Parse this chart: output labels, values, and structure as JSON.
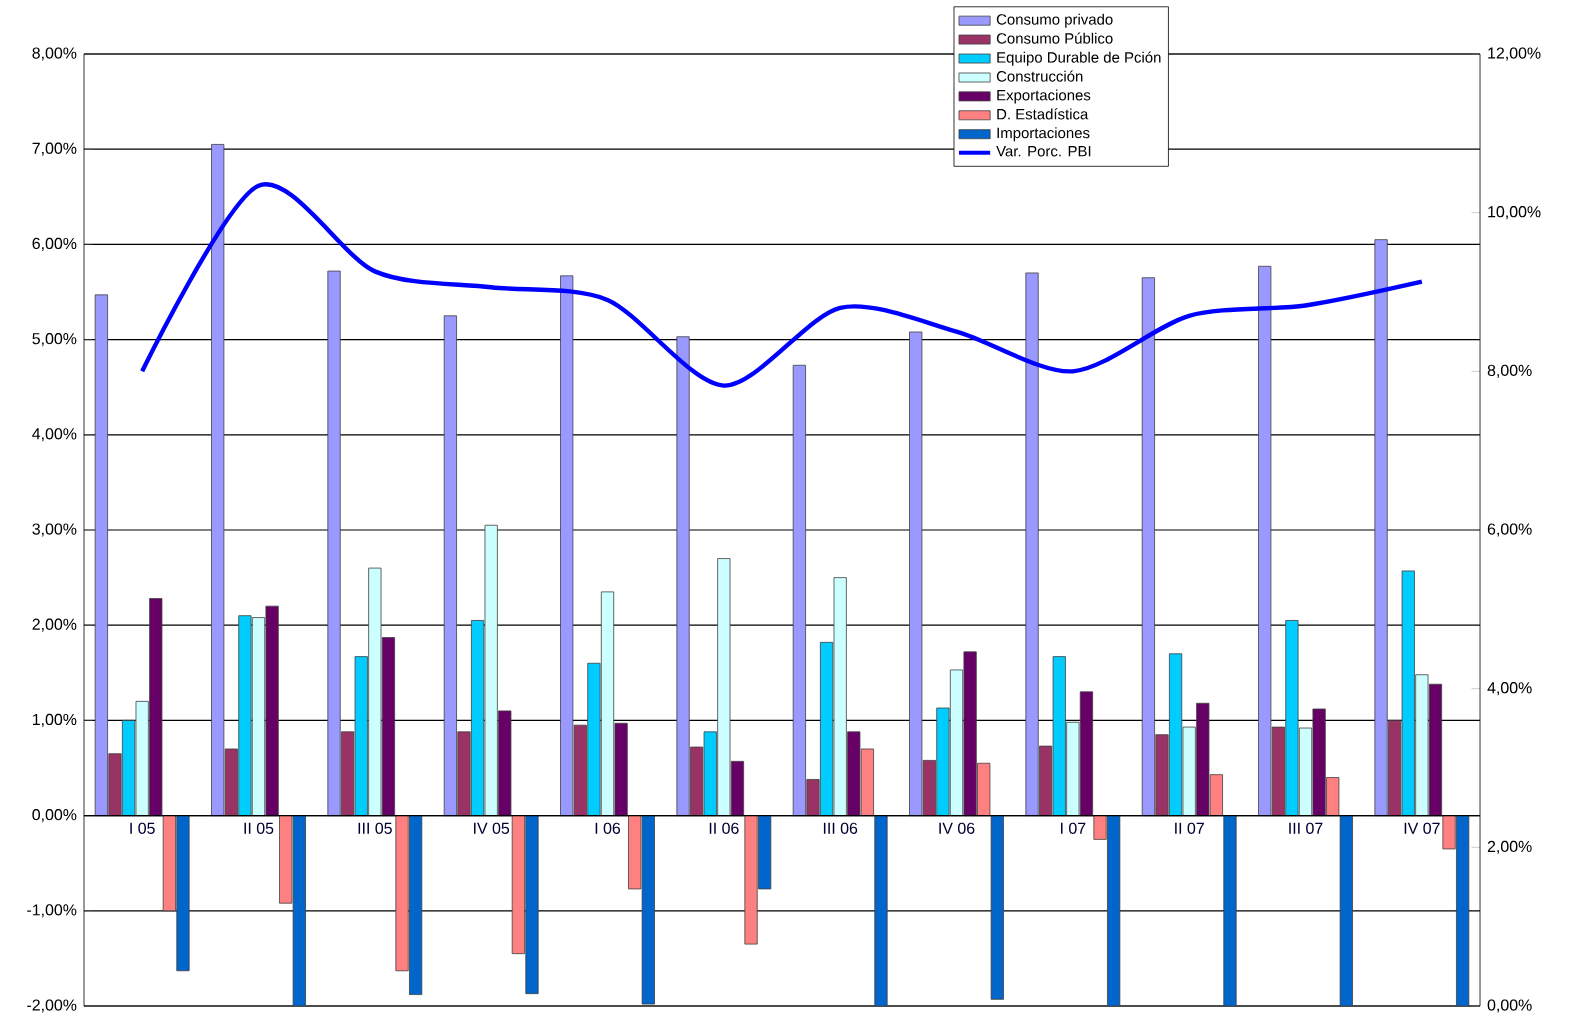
{
  "chart_data": {
    "type": "bar",
    "categories": [
      "I 05",
      "II 05",
      "III 05",
      "IV 05",
      "I 06",
      "II 06",
      "III 06",
      "IV 06",
      "I 07",
      "II 07",
      "III 07",
      "IV 07"
    ],
    "series": [
      {
        "name": "Consumo privado",
        "color": "#9999ff",
        "values": [
          5.47,
          7.05,
          5.72,
          5.25,
          5.67,
          5.03,
          4.73,
          5.08,
          5.7,
          5.65,
          5.77,
          6.05
        ]
      },
      {
        "name": "Consumo Público",
        "color": "#993366",
        "values": [
          0.65,
          0.7,
          0.88,
          0.88,
          0.95,
          0.72,
          0.38,
          0.58,
          0.73,
          0.85,
          0.93,
          1.0
        ]
      },
      {
        "name": "Equipo Durable de Pción",
        "color": "#00ccff",
        "values": [
          1.0,
          2.1,
          1.67,
          2.05,
          1.6,
          0.88,
          1.82,
          1.13,
          1.67,
          1.7,
          2.05,
          2.57
        ]
      },
      {
        "name": "Construcción",
        "color": "#ccffff",
        "values": [
          1.2,
          2.08,
          2.6,
          3.05,
          2.35,
          2.7,
          2.5,
          1.53,
          0.98,
          0.93,
          0.92,
          1.48
        ]
      },
      {
        "name": "Exportaciones",
        "color": "#660066",
        "values": [
          2.28,
          2.2,
          1.87,
          1.1,
          0.97,
          0.57,
          0.88,
          1.72,
          1.3,
          1.18,
          1.12,
          1.38
        ]
      },
      {
        "name": "D. Estadística",
        "color": "#ff8080",
        "values": [
          -1.0,
          -0.92,
          -1.63,
          -1.45,
          -0.77,
          -1.35,
          0.7,
          0.55,
          -0.25,
          0.43,
          0.4,
          -0.35
        ]
      },
      {
        "name": "Importaciones",
        "color": "#0066cc",
        "values": [
          -1.63,
          -2.0,
          -1.88,
          -1.87,
          -1.98,
          -0.77,
          -2.0,
          -1.93,
          -2.0,
          -2.0,
          -2.0,
          -2.0
        ]
      },
      {
        "name": "Var. Porc. PBI",
        "color": "#0000ff",
        "type": "line",
        "axis": "y2",
        "values": [
          8.0,
          10.34,
          9.26,
          9.06,
          8.9,
          7.82,
          8.8,
          8.5,
          8.0,
          8.7,
          8.83,
          9.13
        ]
      }
    ],
    "ylim": [
      -2,
      8
    ],
    "yticks": [
      {
        "value": -2,
        "label": "-2,00%"
      },
      {
        "value": -1,
        "label": "-1,00%"
      },
      {
        "value": 0,
        "label": "0,00%"
      },
      {
        "value": 1,
        "label": "1,00%"
      },
      {
        "value": 2,
        "label": "2,00%"
      },
      {
        "value": 3,
        "label": "3,00%"
      },
      {
        "value": 4,
        "label": "4,00%"
      },
      {
        "value": 5,
        "label": "5,00%"
      },
      {
        "value": 6,
        "label": "6,00%"
      },
      {
        "value": 7,
        "label": "7,00%"
      },
      {
        "value": 8,
        "label": "8,00%"
      }
    ],
    "y2lim": [
      0,
      12
    ],
    "y2ticks": [
      {
        "value": 0,
        "label": "0,00%"
      },
      {
        "value": 2,
        "label": "2,00%"
      },
      {
        "value": 4,
        "label": "4,00%"
      },
      {
        "value": 6,
        "label": "6,00%"
      },
      {
        "value": 8,
        "label": "8,00%"
      },
      {
        "value": 10,
        "label": "10,00%"
      },
      {
        "value": 12,
        "label": "12,00%"
      }
    ],
    "grid": "y",
    "legend": "top",
    "marker": "none"
  }
}
